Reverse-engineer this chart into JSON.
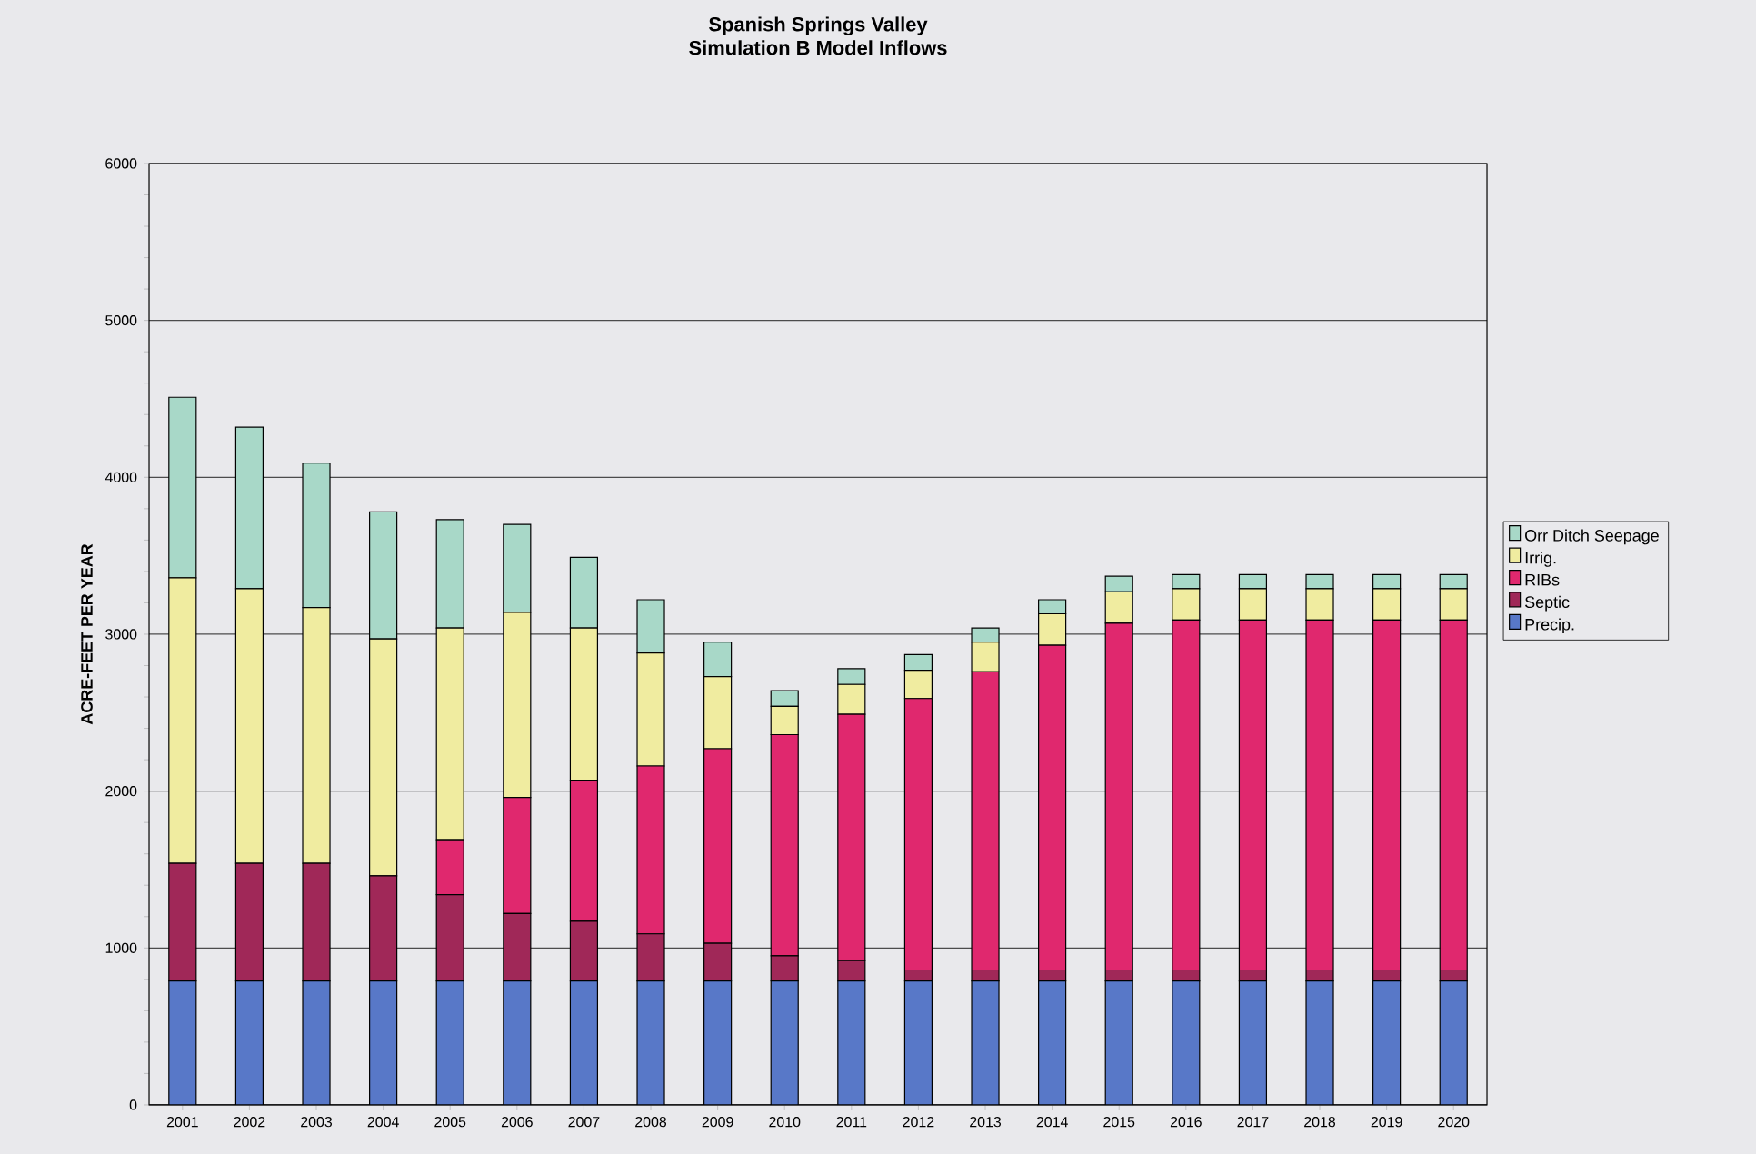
{
  "chart_data": {
    "type": "bar",
    "stacked": true,
    "title": "Spanish Springs Valley\nSimulation B Model Inflows",
    "ylabel": "ACRE-FEET PER YEAR",
    "categories": [
      "2001",
      "2002",
      "2003",
      "2004",
      "2005",
      "2006",
      "2007",
      "2008",
      "2009",
      "2010",
      "2011",
      "2012",
      "2013",
      "2014",
      "2015",
      "2016",
      "2017",
      "2018",
      "2019",
      "2020"
    ],
    "series": [
      {
        "name": "Precip.",
        "color": "#5878c8",
        "values": [
          790,
          790,
          790,
          790,
          790,
          790,
          790,
          790,
          790,
          790,
          790,
          790,
          790,
          790,
          790,
          790,
          790,
          790,
          790,
          790
        ]
      },
      {
        "name": "Septic",
        "color": "#a02858",
        "values": [
          750,
          750,
          750,
          670,
          550,
          430,
          380,
          300,
          240,
          160,
          130,
          70,
          70,
          70,
          70,
          70,
          70,
          70,
          70,
          70
        ]
      },
      {
        "name": "RIBs",
        "color": "#e0286e",
        "values": [
          0,
          0,
          0,
          0,
          350,
          740,
          900,
          1070,
          1240,
          1410,
          1570,
          1730,
          1900,
          2070,
          2210,
          2230,
          2230,
          2230,
          2230,
          2230
        ]
      },
      {
        "name": "Irrig.",
        "color": "#f0eca0",
        "values": [
          1820,
          1750,
          1630,
          1510,
          1350,
          1180,
          970,
          720,
          460,
          180,
          190,
          180,
          190,
          200,
          200,
          200,
          200,
          200,
          200,
          200
        ]
      },
      {
        "name": "Orr Ditch Seepage",
        "color": "#a8d8c8",
        "values": [
          1150,
          1030,
          920,
          810,
          690,
          560,
          450,
          340,
          220,
          100,
          100,
          100,
          90,
          90,
          100,
          90,
          90,
          90,
          90,
          90
        ]
      }
    ],
    "ylim": [
      0,
      6000
    ],
    "yticks": [
      0,
      1000,
      2000,
      3000,
      4000,
      5000,
      6000
    ],
    "grid": "y",
    "legend": "right"
  }
}
